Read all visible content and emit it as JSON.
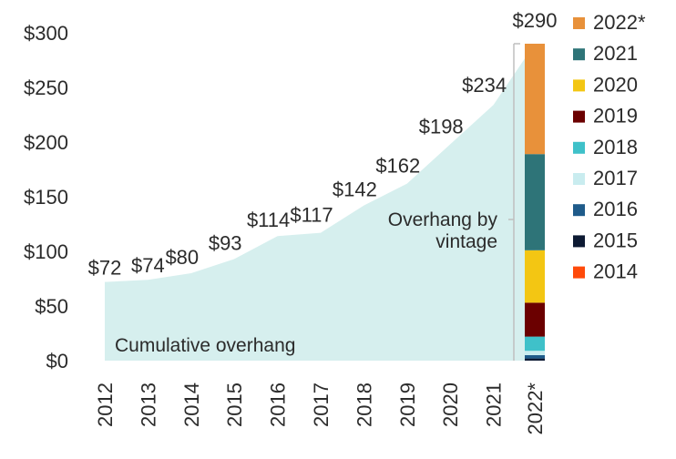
{
  "chart_data": {
    "type": "area",
    "categories": [
      "2012",
      "2013",
      "2014",
      "2015",
      "2016",
      "2017",
      "2018",
      "2019",
      "2020",
      "2021",
      "2022*"
    ],
    "cumulative": {
      "name": "Cumulative overhang",
      "values": [
        72,
        74,
        80,
        93,
        114,
        117,
        142,
        162,
        198,
        234,
        290
      ],
      "labels": [
        "$72",
        "$74",
        "$80",
        "$93",
        "$114",
        "$117",
        "$142",
        "$162",
        "$198",
        "$234",
        "$290"
      ],
      "color": "#d6efee"
    },
    "stacked_bar": {
      "category": "2022*",
      "label": "Overhang by vintage",
      "segments": [
        {
          "name": "2015",
          "value": 2,
          "color": "#0d1a33"
        },
        {
          "name": "2016",
          "value": 3,
          "color": "#1f5b8a"
        },
        {
          "name": "2017",
          "value": 4,
          "color": "#c9ecef"
        },
        {
          "name": "2018",
          "value": 13,
          "color": "#3fc1c9"
        },
        {
          "name": "2019",
          "value": 31,
          "color": "#6b0000"
        },
        {
          "name": "2020",
          "value": 48,
          "color": "#f3c613"
        },
        {
          "name": "2021",
          "value": 88,
          "color": "#2e7478"
        },
        {
          "name": "2022*",
          "value": 101,
          "color": "#e8913a"
        }
      ]
    },
    "legend": [
      {
        "name": "2022*",
        "color": "#e8913a"
      },
      {
        "name": "2021",
        "color": "#2e7478"
      },
      {
        "name": "2020",
        "color": "#f3c613"
      },
      {
        "name": "2019",
        "color": "#6b0000"
      },
      {
        "name": "2018",
        "color": "#3fc1c9"
      },
      {
        "name": "2017",
        "color": "#c9ecef"
      },
      {
        "name": "2016",
        "color": "#1f5b8a"
      },
      {
        "name": "2015",
        "color": "#0d1a33"
      },
      {
        "name": "2014",
        "color": "#ff4a0a"
      }
    ],
    "yticks": [
      "$0",
      "$50",
      "$100",
      "$150",
      "$200",
      "$250",
      "$300"
    ],
    "ytick_values": [
      0,
      50,
      100,
      150,
      200,
      250,
      300
    ],
    "ylim": [
      0,
      300
    ],
    "area_annotation": "Cumulative overhang",
    "bar_annotation_lines": [
      "Overhang by",
      "vintage"
    ],
    "grid": false,
    "legend_position": "right"
  }
}
